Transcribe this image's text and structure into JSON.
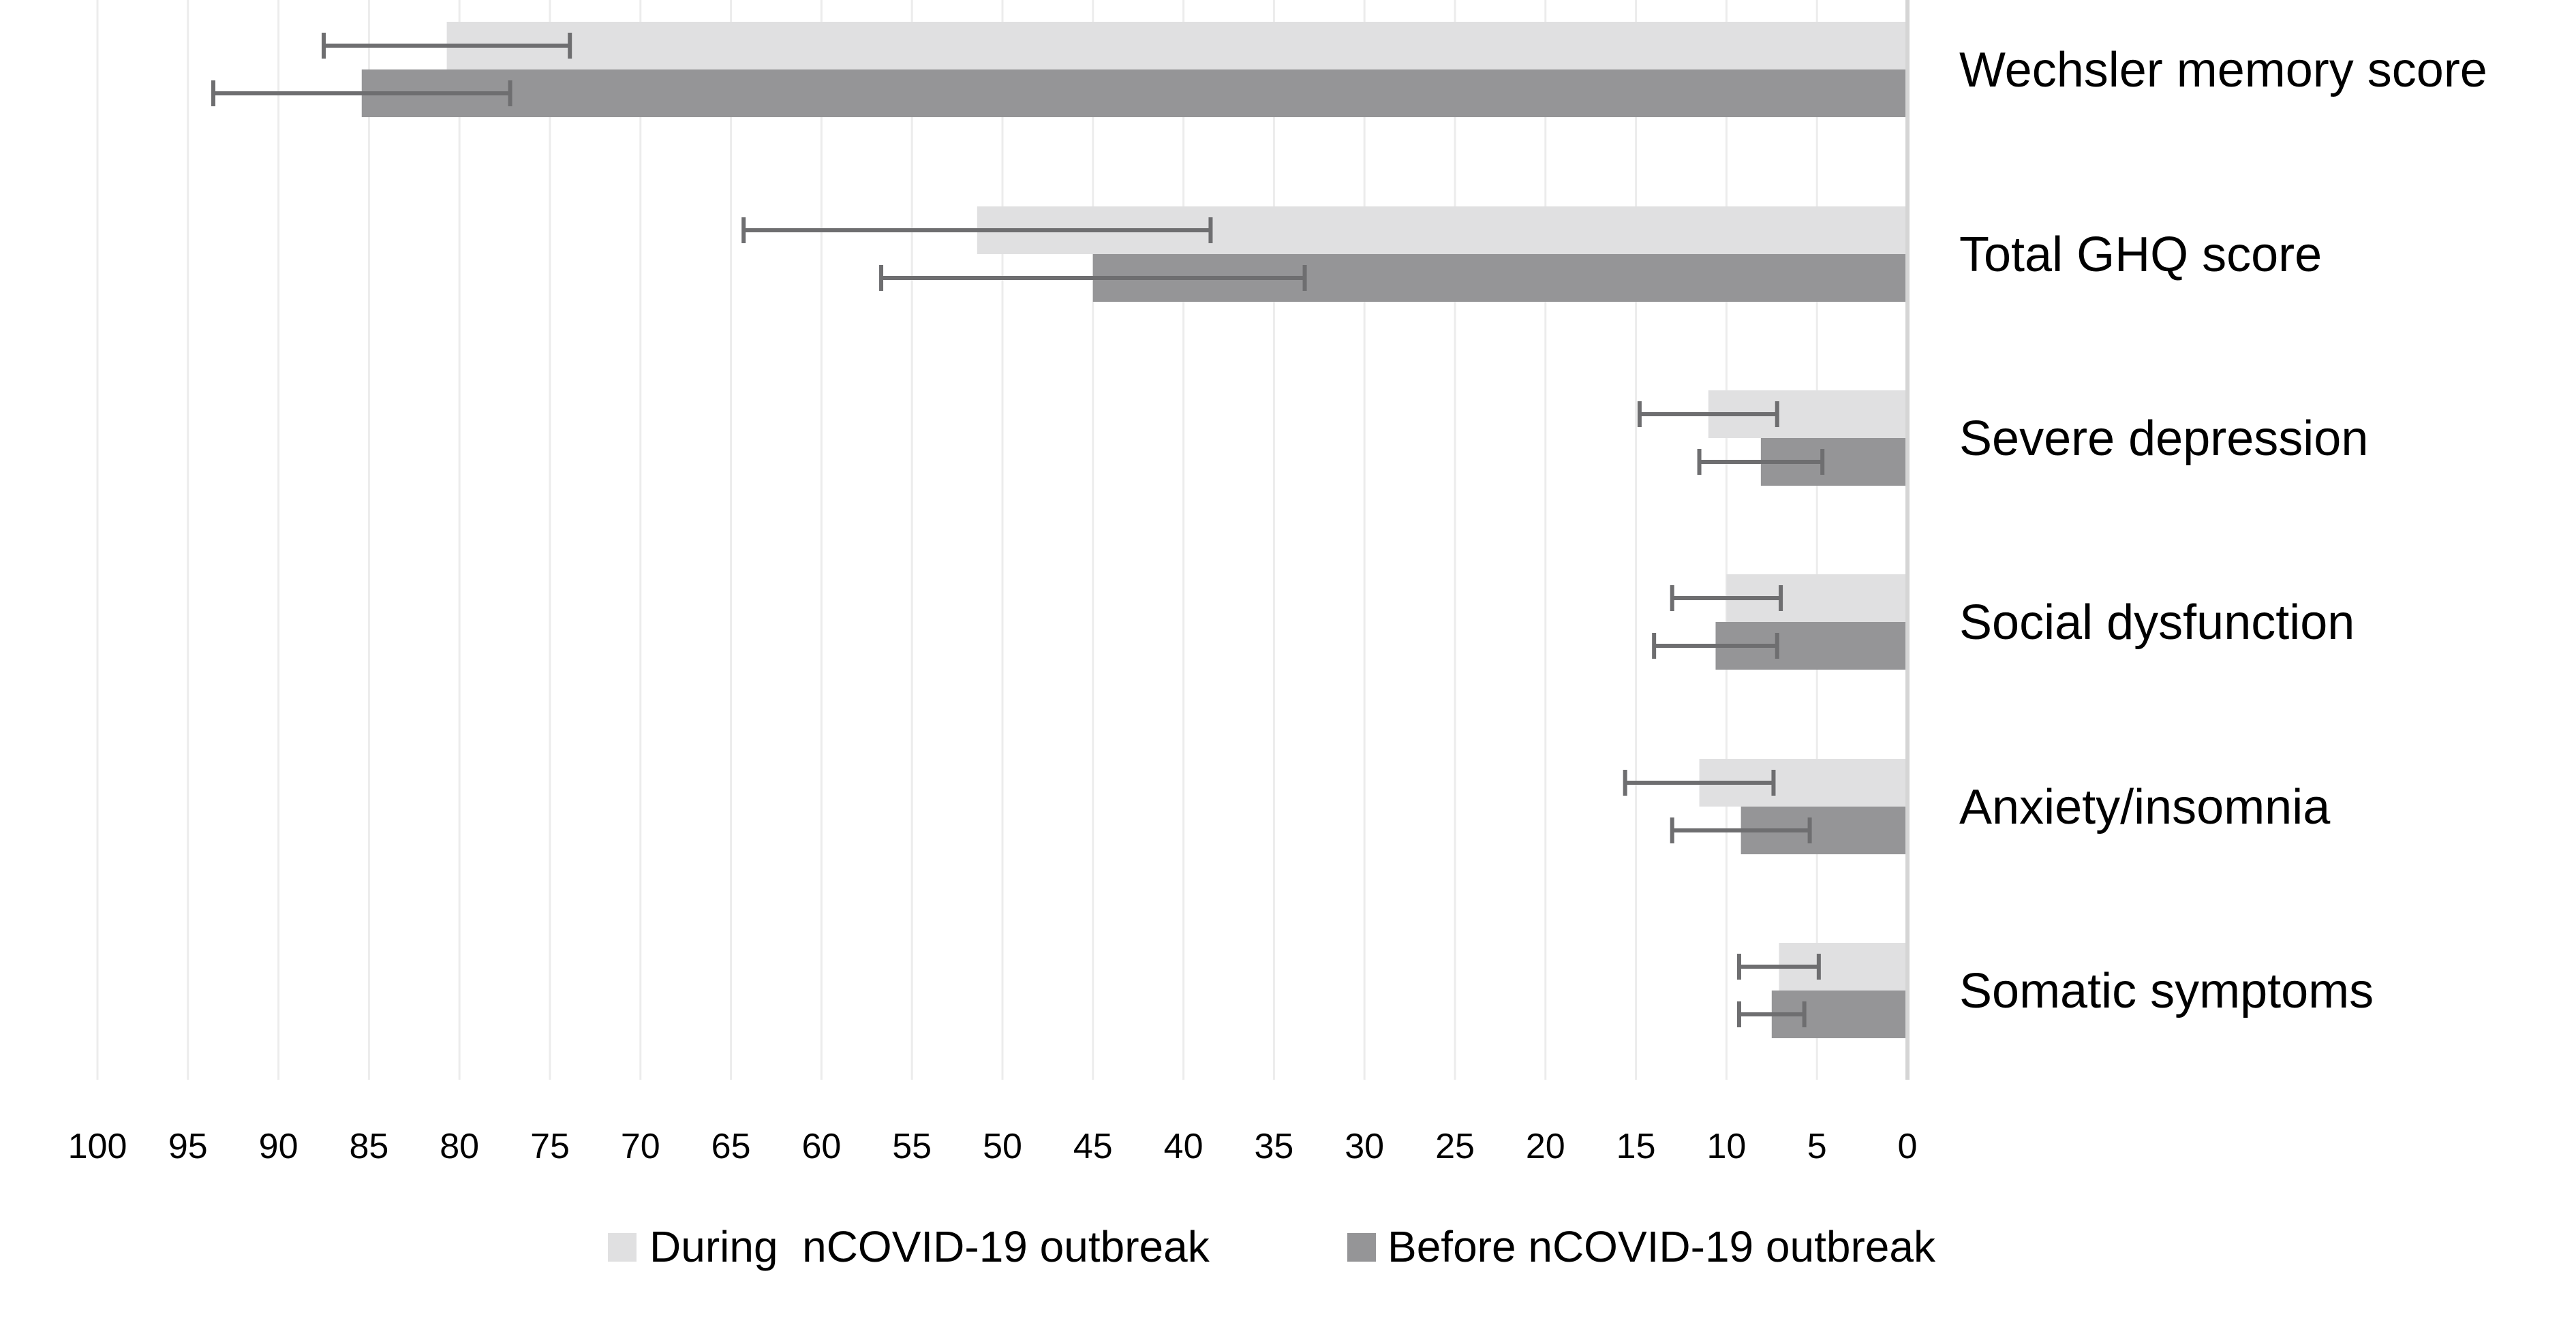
{
  "chart_data": {
    "type": "bar",
    "orientation": "horizontal",
    "x_direction": "reversed",
    "xlim": [
      0,
      100
    ],
    "x_tick_step": 5,
    "x_ticks": [
      "100",
      "95",
      "90",
      "85",
      "80",
      "75",
      "70",
      "65",
      "60",
      "55",
      "50",
      "45",
      "40",
      "35",
      "30",
      "25",
      "20",
      "15",
      "10",
      "5",
      "0"
    ],
    "grid": true,
    "legend_position": "bottom",
    "categories": [
      "Wechsler memory score",
      "Total GHQ score",
      "Severe depression",
      "Social dysfunction",
      "Anxiety/insomnia",
      "Somatic symptoms"
    ],
    "series": [
      {
        "name": "During  nCOVID-19 outbreak",
        "color": "#e0e0e1",
        "values": [
          80.7,
          51.4,
          11.0,
          10.0,
          11.5,
          7.1
        ],
        "errors": [
          6.8,
          12.9,
          3.8,
          3.0,
          4.1,
          2.2
        ]
      },
      {
        "name": "Before nCOVID-19 outbreak",
        "color": "#959597",
        "values": [
          85.4,
          45.0,
          8.1,
          10.6,
          9.2,
          7.5
        ],
        "errors": [
          8.2,
          11.7,
          3.4,
          3.4,
          3.8,
          1.8
        ]
      }
    ],
    "error_bar_color": "#6e6e70",
    "axis_color": "#d5d5d5",
    "gridline_color": "#ececec"
  }
}
